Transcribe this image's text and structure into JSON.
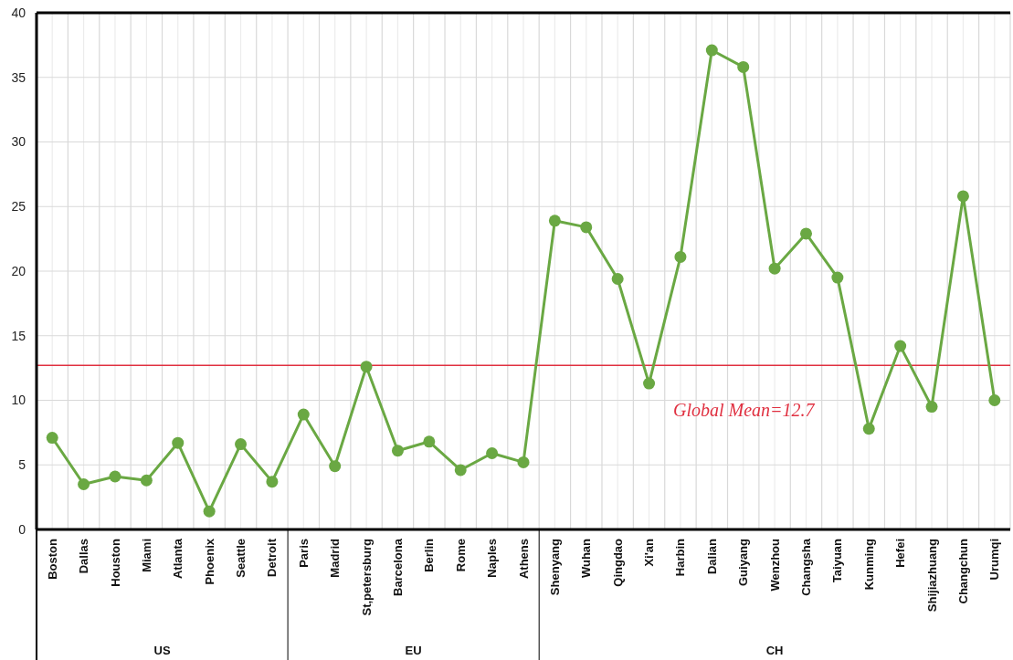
{
  "chart_data": {
    "type": "line",
    "categories": [
      "Boston",
      "Dallas",
      "Houston",
      "Miami",
      "Atlanta",
      "Phoenix",
      "Seattle",
      "Detroit",
      "Paris",
      "Madrid",
      "St,petersburg",
      "Barcelona",
      "Berlin",
      "Rome",
      "Naples",
      "Athens",
      "Shenyang",
      "Wuhan",
      "Qingdao",
      "Xi'an",
      "Harbin",
      "Dalian",
      "Guiyang",
      "Wenzhou",
      "Changsha",
      "Taiyuan",
      "Kunming",
      "Hefei",
      "Shijiazhuang",
      "Changchun",
      "Urumqi"
    ],
    "series": [
      {
        "color": "#6aa843",
        "values": [
          7.1,
          3.5,
          4.1,
          3.8,
          6.7,
          1.4,
          6.6,
          3.7,
          8.9,
          4.9,
          12.6,
          6.1,
          6.8,
          4.6,
          5.9,
          5.2,
          23.9,
          23.4,
          19.4,
          11.3,
          21.1,
          37.1,
          35.8,
          20.2,
          22.9,
          19.5,
          7.8,
          14.2,
          9.5,
          25.8,
          10.0
        ]
      }
    ],
    "ylim": [
      0,
      40
    ],
    "yticks": [
      0,
      5,
      10,
      15,
      20,
      25,
      30,
      35,
      40
    ],
    "grid": true,
    "marker": "circle",
    "line_style": "solid",
    "ref_lines": [
      {
        "axis": "y",
        "value": 12.7,
        "label": "Global Mean=12.7",
        "color": "#e03040"
      }
    ],
    "annotations": [
      "US",
      "EU",
      "CH"
    ]
  }
}
